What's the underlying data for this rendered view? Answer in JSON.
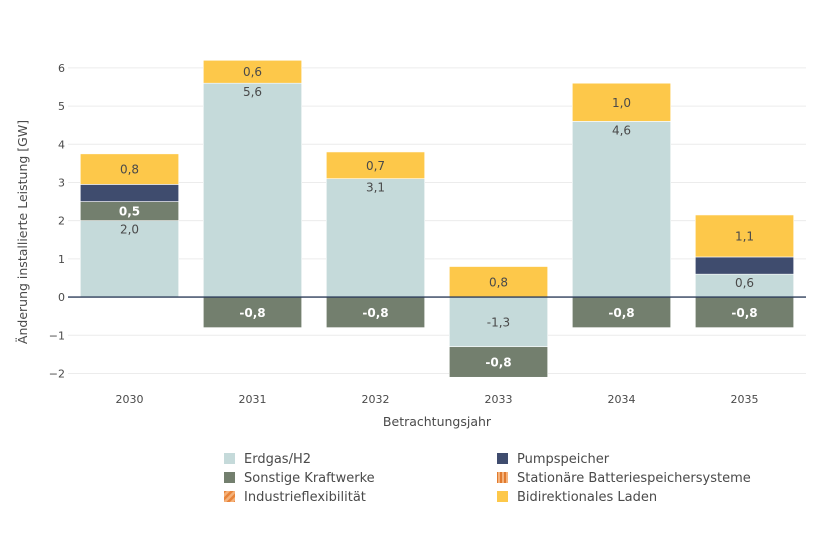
{
  "chart_data": {
    "type": "bar",
    "stacked": true,
    "categories": [
      "2030",
      "2031",
      "2032",
      "2033",
      "2034",
      "2035"
    ],
    "xlabel": "Betrachtungsjahr",
    "ylabel": "Änderung installierte Leistung [GW]",
    "ylim": [
      -2.25,
      6.6
    ],
    "yticks": [
      -2,
      -1,
      0,
      1,
      2,
      3,
      4,
      5,
      6
    ],
    "ytick_labels": [
      "−2",
      "−1",
      "0",
      "1",
      "2",
      "3",
      "4",
      "5",
      "6"
    ],
    "grid": true,
    "legend_position": "bottom-center",
    "series": [
      {
        "name": "Erdgas/H2",
        "color": "#c5dada",
        "label_color": "#4a4a4a",
        "values": [
          2.0,
          5.6,
          3.1,
          -1.3,
          4.6,
          0.6
        ],
        "labels": [
          "2,0",
          "5,6",
          "3,1",
          "-1,3",
          "4,6",
          "0,6"
        ]
      },
      {
        "name": "Sonstige Kraftwerke",
        "color": "#737f6e",
        "label_color": "#ffffff",
        "values": [
          0.5,
          -0.8,
          -0.8,
          -0.8,
          -0.8,
          -0.8
        ],
        "labels": [
          "0,5",
          "-0,8",
          "-0,8",
          "-0,8",
          "-0,8",
          "-0,8"
        ]
      },
      {
        "name": "Industrieflexibilität",
        "color": "#e8843a",
        "label_color": "#ffffff",
        "values": [
          0,
          0,
          0,
          0,
          0,
          0
        ],
        "labels": [
          "",
          "",
          "",
          "",
          "",
          ""
        ]
      },
      {
        "name": "Pumpspeicher",
        "color": "#3f4c6e",
        "label_color": "#ffffff",
        "values": [
          0.45,
          0,
          0,
          0,
          0,
          0.45
        ],
        "labels": [
          "",
          "",
          "",
          "",
          "",
          ""
        ]
      },
      {
        "name": "Stationäre Batteriespeichersysteme",
        "color": "#e07a2e",
        "label_color": "#ffffff",
        "values": [
          0,
          0,
          0,
          0,
          0,
          0
        ],
        "labels": [
          "",
          "",
          "",
          "",
          "",
          ""
        ]
      },
      {
        "name": "Bidirektionales Laden",
        "color": "#fdc84a",
        "label_color": "#4a4a4a",
        "values": [
          0.8,
          0.6,
          0.7,
          0.8,
          1.0,
          1.1
        ],
        "labels": [
          "0,8",
          "0,6",
          "0,7",
          "0,8",
          "1,0",
          "1,1"
        ]
      }
    ],
    "legend": [
      {
        "name": "Erdgas/H2",
        "color": "#c5dada",
        "pattern": "solid"
      },
      {
        "name": "Sonstige Kraftwerke",
        "color": "#737f6e",
        "pattern": "solid"
      },
      {
        "name": "Industrieflexibilität",
        "color": "#e8843a",
        "pattern": "diagonal"
      },
      {
        "name": "Pumpspeicher",
        "color": "#3f4c6e",
        "pattern": "solid"
      },
      {
        "name": "Stationäre Batteriespeichersysteme",
        "color": "#e07a2e",
        "pattern": "vertical"
      },
      {
        "name": "Bidirektionales Laden",
        "color": "#fdc84a",
        "pattern": "solid"
      }
    ]
  }
}
